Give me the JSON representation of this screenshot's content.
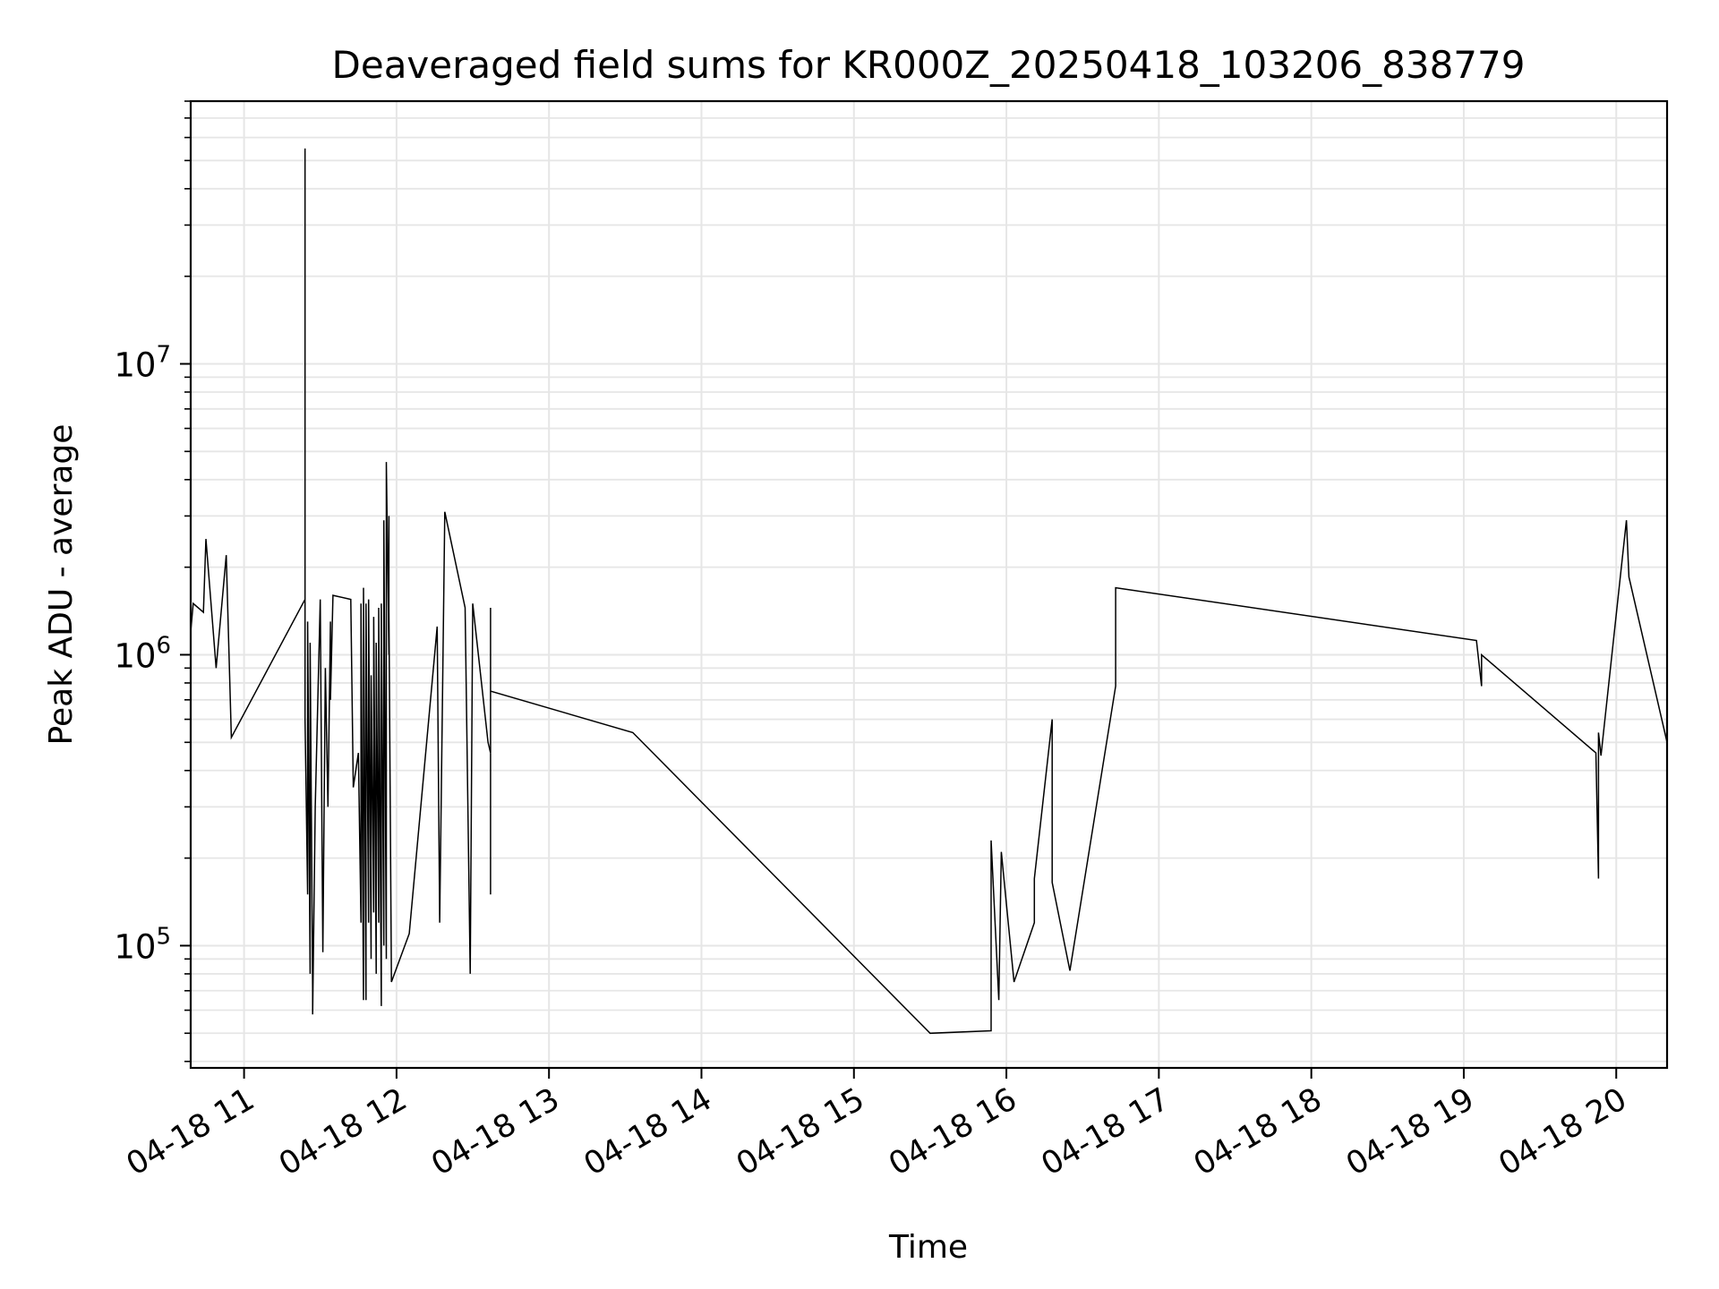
{
  "chart_data": {
    "type": "line",
    "title": "Deaveraged field sums for KR000Z_20250418_103206_838779",
    "xlabel": "Time",
    "ylabel": "Peak ADU - average",
    "yscale": "log",
    "grid": true,
    "xlim": [
      "2025-04-18 10:39",
      "2025-04-18 20:20"
    ],
    "ylim": [
      38000,
      80000000
    ],
    "x_ticks": [
      {
        "value": "2025-04-18 11:00",
        "label": "04-18 11"
      },
      {
        "value": "2025-04-18 12:00",
        "label": "04-18 12"
      },
      {
        "value": "2025-04-18 13:00",
        "label": "04-18 13"
      },
      {
        "value": "2025-04-18 14:00",
        "label": "04-18 14"
      },
      {
        "value": "2025-04-18 15:00",
        "label": "04-18 15"
      },
      {
        "value": "2025-04-18 16:00",
        "label": "04-18 16"
      },
      {
        "value": "2025-04-18 17:00",
        "label": "04-18 17"
      },
      {
        "value": "2025-04-18 18:00",
        "label": "04-18 18"
      },
      {
        "value": "2025-04-18 19:00",
        "label": "04-18 19"
      },
      {
        "value": "2025-04-18 20:00",
        "label": "04-18 20"
      }
    ],
    "y_ticks": [
      {
        "value": 100000,
        "base": "10",
        "exp": "5"
      },
      {
        "value": 1000000,
        "base": "10",
        "exp": "6"
      },
      {
        "value": 10000000,
        "base": "10",
        "exp": "7"
      }
    ],
    "series": [
      {
        "color": "#000000",
        "points": [
          [
            "2025-04-18 10:39",
            1200000
          ],
          [
            "2025-04-18 10:40",
            1500000
          ],
          [
            "2025-04-18 10:44",
            1400000
          ],
          [
            "2025-04-18 10:45",
            2500000
          ],
          [
            "2025-04-18 10:49",
            900000
          ],
          [
            "2025-04-18 10:53",
            2200000
          ],
          [
            "2025-04-18 10:55",
            520000
          ],
          [
            "2025-04-18 11:24",
            1550000
          ],
          [
            "2025-04-18 11:24",
            55000000
          ],
          [
            "2025-04-18 11:24",
            600000
          ],
          [
            "2025-04-18 11:25",
            150000
          ],
          [
            "2025-04-18 11:25",
            1300000
          ],
          [
            "2025-04-18 11:26",
            80000
          ],
          [
            "2025-04-18 11:26",
            1100000
          ],
          [
            "2025-04-18 11:27",
            70000
          ],
          [
            "2025-04-18 11:27",
            58000
          ],
          [
            "2025-04-18 11:28",
            300000
          ],
          [
            "2025-04-18 11:30",
            1550000
          ],
          [
            "2025-04-18 11:31",
            95000
          ],
          [
            "2025-04-18 11:32",
            900000
          ],
          [
            "2025-04-18 11:33",
            300000
          ],
          [
            "2025-04-18 11:34",
            1300000
          ],
          [
            "2025-04-18 11:34",
            700000
          ],
          [
            "2025-04-18 11:35",
            1600000
          ],
          [
            "2025-04-18 11:42",
            1550000
          ],
          [
            "2025-04-18 11:43",
            350000
          ],
          [
            "2025-04-18 11:45",
            460000
          ],
          [
            "2025-04-18 11:46",
            120000
          ],
          [
            "2025-04-18 11:46",
            1500000
          ],
          [
            "2025-04-18 11:47",
            65000
          ],
          [
            "2025-04-18 11:47",
            1700000
          ],
          [
            "2025-04-18 11:48",
            65000
          ],
          [
            "2025-04-18 11:48",
            1500000
          ],
          [
            "2025-04-18 11:49",
            120000
          ],
          [
            "2025-04-18 11:49",
            1550000
          ],
          [
            "2025-04-18 11:50",
            90000
          ],
          [
            "2025-04-18 11:50",
            850000
          ],
          [
            "2025-04-18 11:51",
            130000
          ],
          [
            "2025-04-18 11:51",
            1350000
          ],
          [
            "2025-04-18 11:52",
            80000
          ],
          [
            "2025-04-18 11:52",
            1100000
          ],
          [
            "2025-04-18 11:53",
            120000
          ],
          [
            "2025-04-18 11:53",
            1450000
          ],
          [
            "2025-04-18 11:54",
            62000
          ],
          [
            "2025-04-18 11:54",
            1500000
          ],
          [
            "2025-04-18 11:55",
            100000
          ],
          [
            "2025-04-18 11:55",
            2900000
          ],
          [
            "2025-04-18 11:56",
            90000
          ],
          [
            "2025-04-18 11:56",
            4600000
          ],
          [
            "2025-04-18 11:57",
            1000000
          ],
          [
            "2025-04-18 11:57",
            3000000
          ],
          [
            "2025-04-18 11:57",
            1450000
          ],
          [
            "2025-04-18 11:58",
            75000
          ],
          [
            "2025-04-18 12:05",
            110000
          ],
          [
            "2025-04-18 12:16",
            1250000
          ],
          [
            "2025-04-18 12:17",
            120000
          ],
          [
            "2025-04-18 12:19",
            3100000
          ],
          [
            "2025-04-18 12:27",
            1450000
          ],
          [
            "2025-04-18 12:29",
            80000
          ],
          [
            "2025-04-18 12:30",
            1500000
          ],
          [
            "2025-04-18 12:36",
            500000
          ],
          [
            "2025-04-18 12:37",
            460000
          ],
          [
            "2025-04-18 12:37",
            750000
          ],
          [
            "2025-04-18 12:37",
            150000
          ],
          [
            "2025-04-18 12:37",
            1450000
          ],
          [
            "2025-04-18 12:37",
            750000
          ],
          [
            "2025-04-18 13:33",
            540000
          ],
          [
            "2025-04-18 15:30",
            50000
          ],
          [
            "2025-04-18 15:54",
            51000
          ],
          [
            "2025-04-18 15:54",
            230000
          ],
          [
            "2025-04-18 15:57",
            65000
          ],
          [
            "2025-04-18 15:58",
            210000
          ],
          [
            "2025-04-18 16:03",
            75000
          ],
          [
            "2025-04-18 16:11",
            120000
          ],
          [
            "2025-04-18 16:11",
            170000
          ],
          [
            "2025-04-18 16:18",
            600000
          ],
          [
            "2025-04-18 16:18",
            165000
          ],
          [
            "2025-04-18 16:25",
            82000
          ],
          [
            "2025-04-18 16:43",
            780000
          ],
          [
            "2025-04-18 16:43",
            1700000
          ],
          [
            "2025-04-18 19:05",
            1120000
          ],
          [
            "2025-04-18 19:07",
            780000
          ],
          [
            "2025-04-18 19:07",
            1000000
          ],
          [
            "2025-04-18 19:52",
            460000
          ],
          [
            "2025-04-18 19:53",
            170000
          ],
          [
            "2025-04-18 19:53",
            540000
          ],
          [
            "2025-04-18 19:54",
            450000
          ],
          [
            "2025-04-18 20:04",
            2900000
          ],
          [
            "2025-04-18 20:05",
            1850000
          ],
          [
            "2025-04-18 20:20",
            500000
          ]
        ]
      }
    ]
  }
}
